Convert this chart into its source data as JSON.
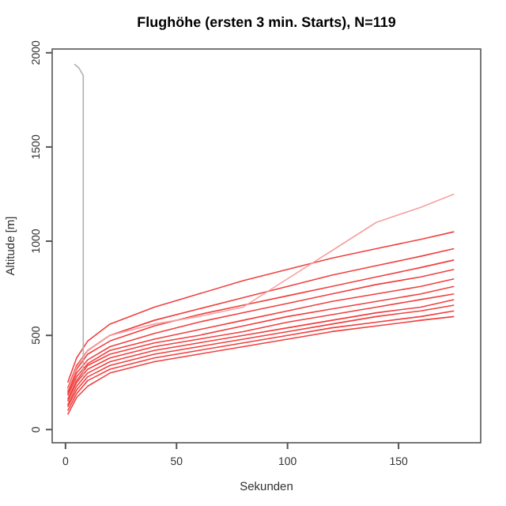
{
  "chart_data": {
    "type": "line",
    "title": "Flughöhe (ersten 3 min. Starts), N=119",
    "xlabel": "Sekunden",
    "ylabel": "Altitude [m]",
    "xlim": [
      -6,
      187
    ],
    "xticks": [
      0,
      50,
      100,
      150
    ],
    "ylim": [
      -70,
      2020
    ],
    "yticks": [
      0,
      500,
      1000,
      1500,
      2000
    ],
    "grid": false,
    "marker": "none",
    "line_style": "solid",
    "x": [
      1,
      5,
      10,
      20,
      40,
      60,
      80,
      100,
      120,
      140,
      160,
      175
    ],
    "series": [
      {
        "color": "#f04040",
        "values": [
          80,
          170,
          230,
          300,
          360,
          400,
          440,
          480,
          520,
          550,
          580,
          600
        ]
      },
      {
        "color": "#f04040",
        "values": [
          100,
          190,
          260,
          320,
          380,
          420,
          460,
          500,
          540,
          570,
          600,
          630
        ]
      },
      {
        "color": "#f04040",
        "values": [
          120,
          210,
          280,
          340,
          400,
          440,
          480,
          520,
          560,
          600,
          630,
          660
        ]
      },
      {
        "color": "#f04040",
        "values": [
          130,
          230,
          300,
          360,
          420,
          460,
          500,
          540,
          580,
          620,
          650,
          690
        ]
      },
      {
        "color": "#f04040",
        "values": [
          150,
          250,
          320,
          380,
          440,
          480,
          520,
          570,
          610,
          650,
          690,
          720
        ]
      },
      {
        "color": "#f04040",
        "values": [
          160,
          260,
          340,
          400,
          460,
          500,
          550,
          600,
          640,
          680,
          720,
          760
        ]
      },
      {
        "color": "#f04040",
        "values": [
          180,
          280,
          350,
          420,
          480,
          530,
          580,
          630,
          680,
          720,
          760,
          800
        ]
      },
      {
        "color": "#f04040",
        "values": [
          190,
          300,
          370,
          440,
          510,
          570,
          620,
          670,
          720,
          770,
          810,
          850
        ]
      },
      {
        "color": "#f04040",
        "values": [
          200,
          320,
          400,
          470,
          550,
          610,
          660,
          710,
          760,
          810,
          860,
          900
        ]
      },
      {
        "color": "#f04040",
        "values": [
          220,
          340,
          420,
          500,
          580,
          640,
          700,
          760,
          820,
          870,
          920,
          960
        ]
      },
      {
        "color": "#f04040",
        "values": [
          250,
          380,
          470,
          560,
          650,
          720,
          790,
          850,
          910,
          960,
          1010,
          1050
        ]
      },
      {
        "color": "#f8a0a0",
        "values": [
          210,
          330,
          420,
          500,
          560,
          600,
          650,
          800,
          950,
          1100,
          1180,
          1250
        ]
      },
      {
        "color": "#b0b0b0",
        "x": [
          8,
          8,
          6,
          4
        ],
        "values": [
          280,
          1880,
          1920,
          1940
        ]
      }
    ]
  }
}
